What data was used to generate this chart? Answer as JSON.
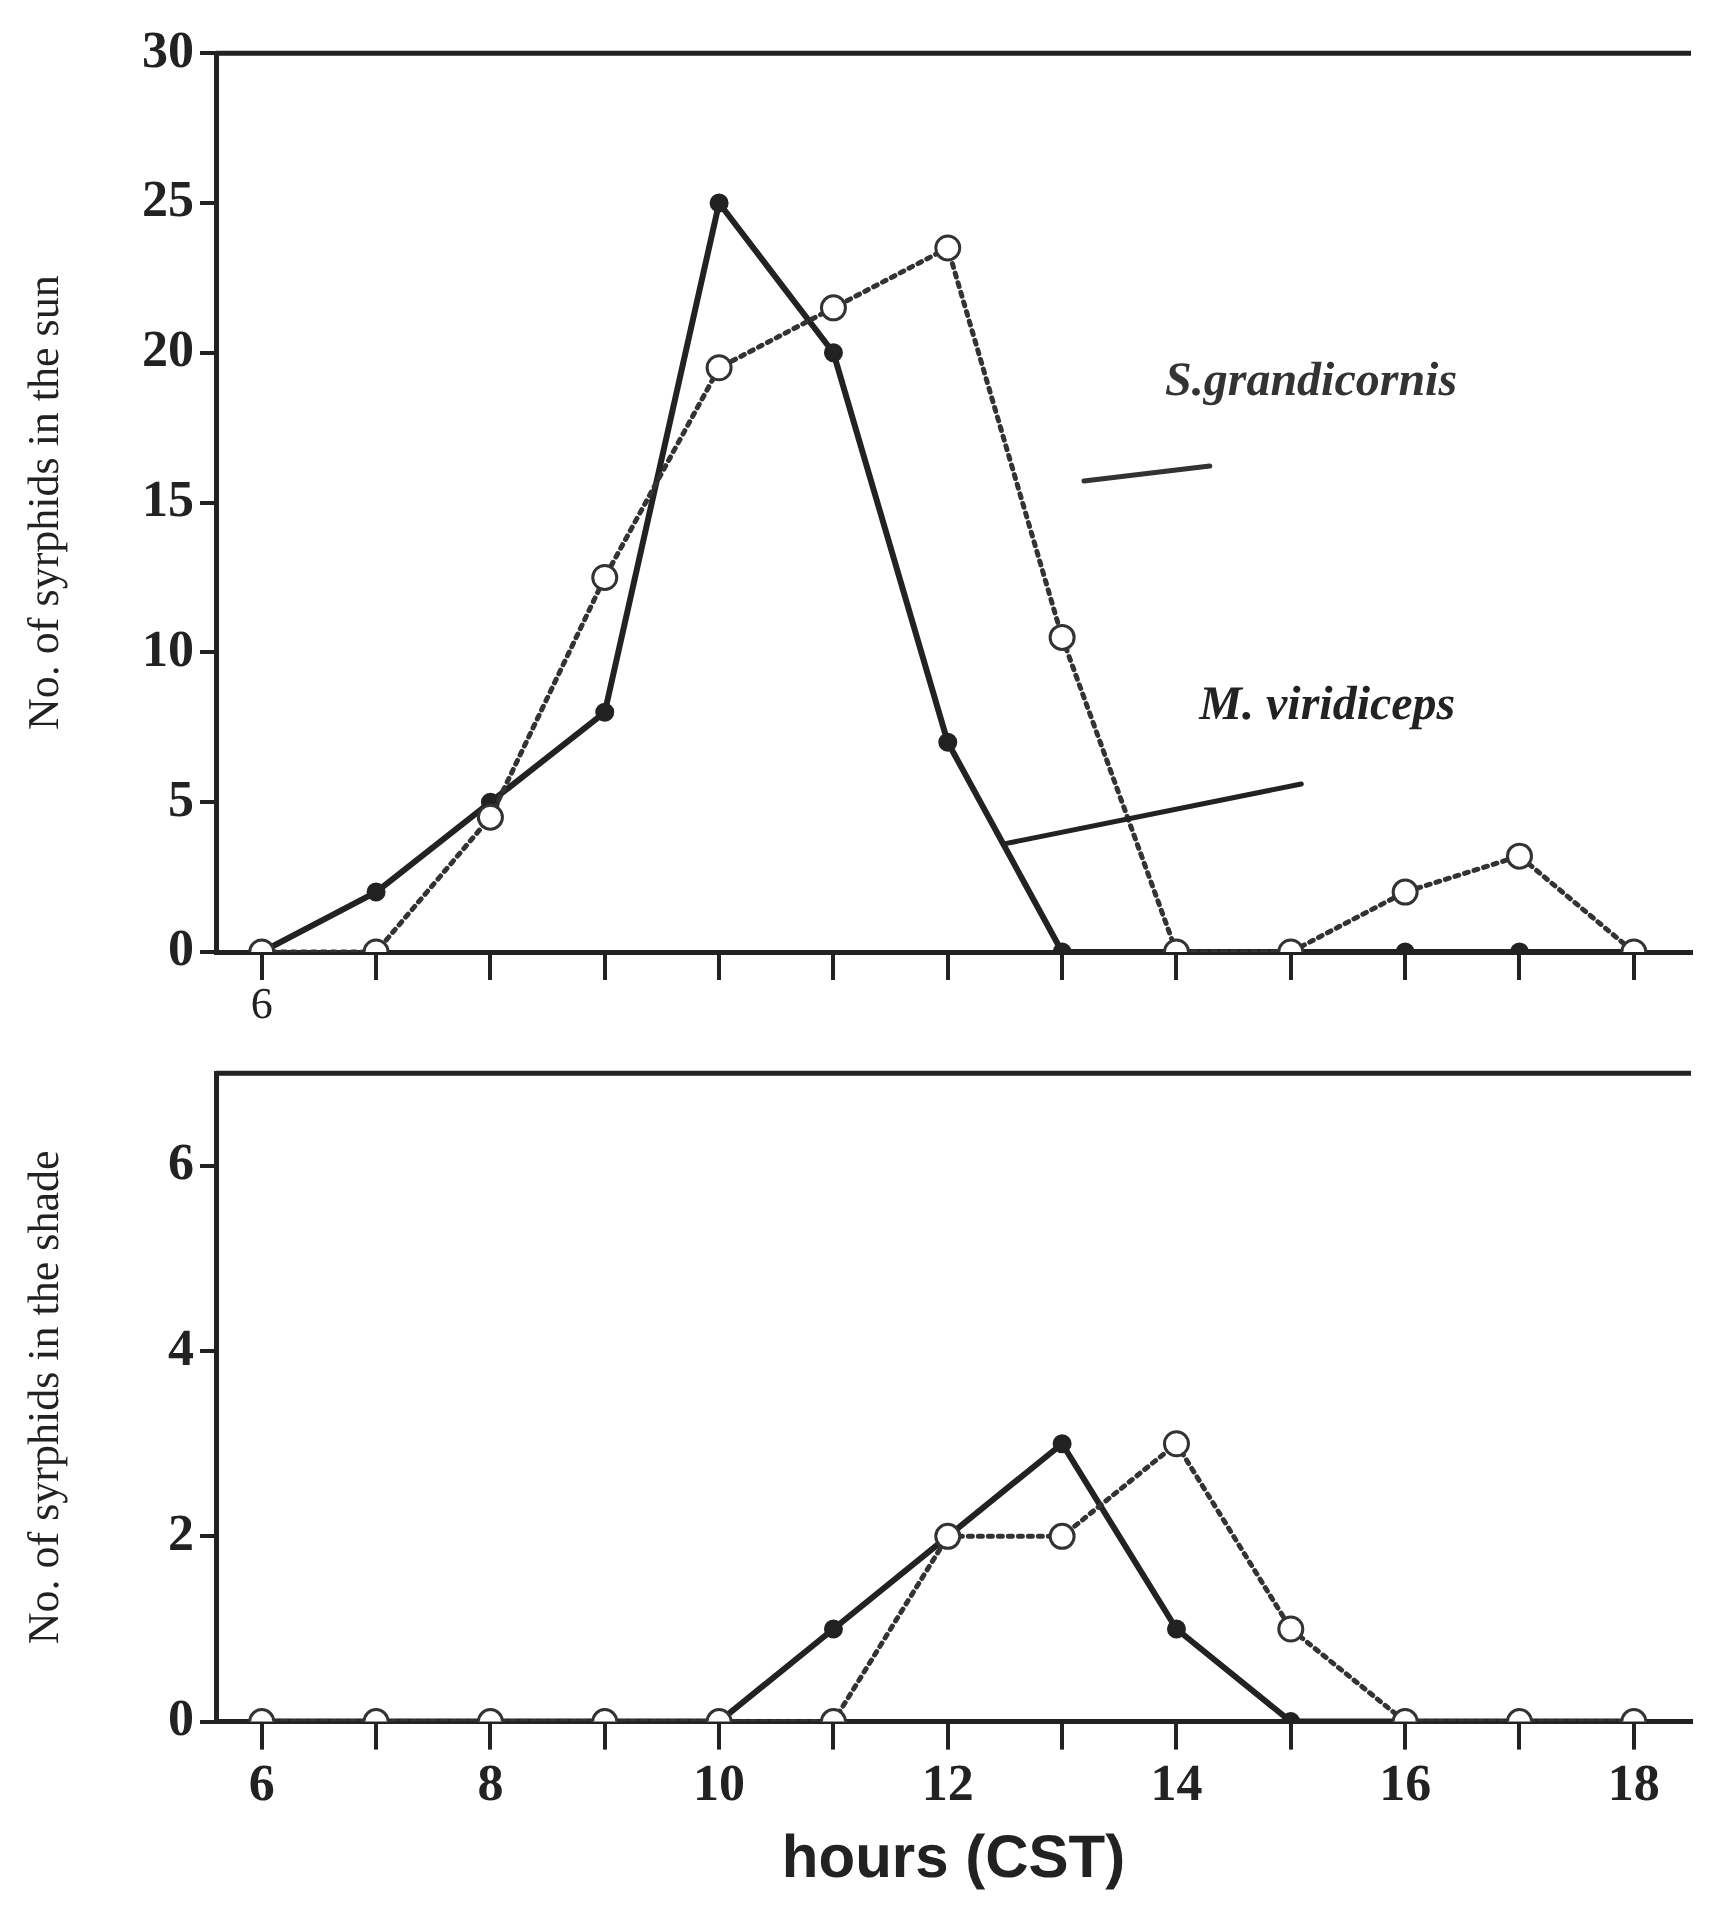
{
  "chart_data": [
    {
      "type": "line",
      "ylabel": "No. of syrphids in the sun",
      "x": [
        6,
        7,
        8,
        9,
        10,
        11,
        12,
        13,
        14,
        15,
        16,
        17,
        18
      ],
      "xlim": [
        5.6,
        18.5
      ],
      "xticks": [
        6,
        {
          "value": 7,
          "label": null
        },
        8,
        {
          "value": 9,
          "label": null
        },
        10,
        {
          "value": 11,
          "label": null
        },
        12,
        {
          "value": 13,
          "label": null
        },
        14,
        {
          "value": 15,
          "label": null
        },
        16,
        {
          "value": 17,
          "label": null
        },
        18
      ],
      "ylim": [
        0,
        30
      ],
      "yticks": [
        0,
        5,
        10,
        15,
        20,
        25,
        30
      ],
      "tick_labels": "y",
      "grid": false,
      "legend": false,
      "annotations": [
        "6"
      ],
      "series": [
        {
          "name": "S.grandicornis",
          "color": "#333333",
          "marker": "circle",
          "line_style": "dotted",
          "values": [
            0,
            0,
            4.5,
            12.5,
            19.5,
            21.5,
            23.5,
            10.5,
            0,
            0,
            2,
            3.2,
            0
          ]
        },
        {
          "name": "M. viridiceps",
          "color": "#222222",
          "marker": "circle",
          "line_style": "solid",
          "values": [
            0,
            2,
            5,
            8,
            25,
            20,
            7,
            0,
            0,
            0,
            0,
            0,
            0
          ]
        }
      ]
    },
    {
      "type": "line",
      "ylabel": "No. of syrphids in the shade",
      "xlabel": "hours (CST)",
      "x": [
        6,
        7,
        8,
        9,
        10,
        11,
        12,
        13,
        14,
        15,
        16,
        17,
        18
      ],
      "xlim": [
        5.6,
        18.5
      ],
      "xticks": [
        6,
        {
          "value": 7,
          "label": null
        },
        8,
        {
          "value": 9,
          "label": null
        },
        10,
        {
          "value": 11,
          "label": null
        },
        12,
        {
          "value": 13,
          "label": null
        },
        14,
        {
          "value": 15,
          "label": null
        },
        16,
        {
          "value": 17,
          "label": null
        },
        18
      ],
      "ylim": [
        0,
        7
      ],
      "yticks": [
        0,
        2,
        4,
        6
      ],
      "grid": false,
      "legend": false,
      "series": [
        {
          "color": "#333333",
          "marker": "circle",
          "line_style": "dotted",
          "values": [
            0,
            0,
            0,
            0,
            0,
            0,
            2,
            2,
            3,
            1,
            0,
            0,
            0
          ]
        },
        {
          "color": "#222222",
          "marker": "circle",
          "line_style": "solid",
          "values": [
            0,
            0,
            0,
            0,
            0,
            1,
            2,
            3,
            1,
            0,
            0,
            0,
            0
          ]
        }
      ]
    }
  ]
}
